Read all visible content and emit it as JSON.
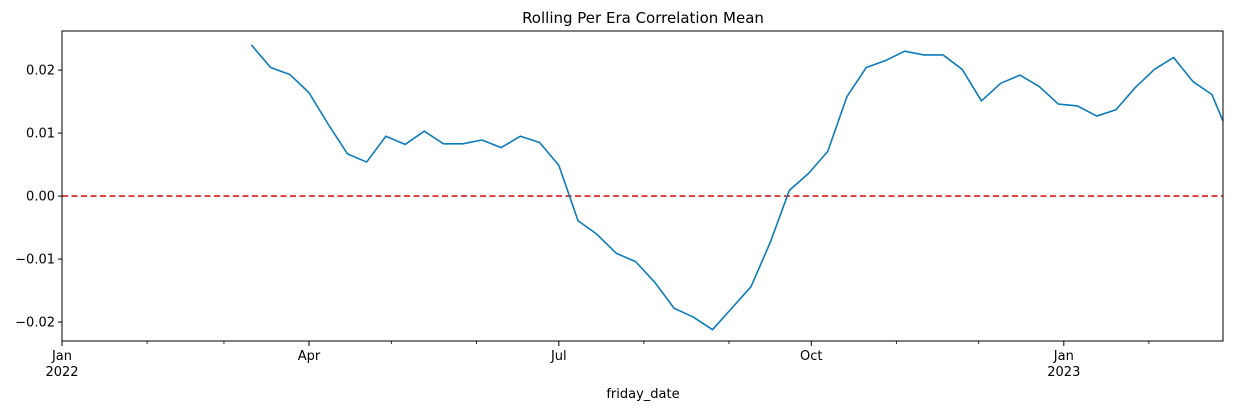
{
  "chart_data": {
    "type": "line",
    "title": "Rolling Per Era Correlation Mean",
    "xlabel": "friday_date",
    "ylabel": "",
    "x_range": [
      "2022-01-01",
      "2023-02-28"
    ],
    "ylim": [
      -0.023,
      0.0262
    ],
    "y_ticks": [
      {
        "value": -0.02,
        "label": "−0.02"
      },
      {
        "value": -0.01,
        "label": "−0.01"
      },
      {
        "value": 0.0,
        "label": "0.00"
      },
      {
        "value": 0.01,
        "label": "0.01"
      },
      {
        "value": 0.02,
        "label": "0.02"
      }
    ],
    "x_major_ticks": [
      {
        "date": "2022-01-01",
        "label": "Jan",
        "sublabel": "2022"
      },
      {
        "date": "2022-04-01",
        "label": "Apr",
        "sublabel": ""
      },
      {
        "date": "2022-07-01",
        "label": "Jul",
        "sublabel": ""
      },
      {
        "date": "2022-10-01",
        "label": "Oct",
        "sublabel": ""
      },
      {
        "date": "2023-01-01",
        "label": "Jan",
        "sublabel": "2023"
      }
    ],
    "x_minor_ticks": [
      "2022-02-01",
      "2022-03-01",
      "2022-05-01",
      "2022-06-01",
      "2022-08-01",
      "2022-09-01",
      "2022-11-01",
      "2022-12-01",
      "2023-02-01"
    ],
    "grid": false,
    "reference_line": {
      "y": 0.0,
      "style": "dashed",
      "color": "#e41a1c"
    },
    "series": [
      {
        "color": "#0c7bba",
        "points": [
          [
            "2022-03-11",
            0.024
          ],
          [
            "2022-03-18",
            0.0204
          ],
          [
            "2022-03-25",
            0.0193
          ],
          [
            "2022-04-01",
            0.0164
          ],
          [
            "2022-04-08",
            0.0114
          ],
          [
            "2022-04-15",
            0.0067
          ],
          [
            "2022-04-22",
            0.0054
          ],
          [
            "2022-04-29",
            0.0095
          ],
          [
            "2022-05-06",
            0.0082
          ],
          [
            "2022-05-13",
            0.0103
          ],
          [
            "2022-05-20",
            0.0083
          ],
          [
            "2022-05-27",
            0.0083
          ],
          [
            "2022-06-03",
            0.0089
          ],
          [
            "2022-06-10",
            0.0077
          ],
          [
            "2022-06-17",
            0.0095
          ],
          [
            "2022-06-24",
            0.0085
          ],
          [
            "2022-07-01",
            0.0049
          ],
          [
            "2022-07-08",
            -0.0039
          ],
          [
            "2022-07-15",
            -0.0061
          ],
          [
            "2022-07-22",
            -0.0091
          ],
          [
            "2022-07-29",
            -0.0104
          ],
          [
            "2022-08-05",
            -0.0137
          ],
          [
            "2022-08-12",
            -0.0178
          ],
          [
            "2022-08-19",
            -0.0192
          ],
          [
            "2022-08-26",
            -0.0212
          ],
          [
            "2022-09-02",
            -0.0178
          ],
          [
            "2022-09-09",
            -0.0144
          ],
          [
            "2022-09-16",
            -0.0074
          ],
          [
            "2022-09-23",
            0.0009
          ],
          [
            "2022-09-30",
            0.0036
          ],
          [
            "2022-10-07",
            0.0071
          ],
          [
            "2022-10-14",
            0.0158
          ],
          [
            "2022-10-21",
            0.0204
          ],
          [
            "2022-10-28",
            0.0215
          ],
          [
            "2022-11-04",
            0.023
          ],
          [
            "2022-11-11",
            0.0224
          ],
          [
            "2022-11-18",
            0.0224
          ],
          [
            "2022-11-25",
            0.0201
          ],
          [
            "2022-12-02",
            0.0151
          ],
          [
            "2022-12-09",
            0.0179
          ],
          [
            "2022-12-16",
            0.0192
          ],
          [
            "2022-12-23",
            0.0174
          ],
          [
            "2022-12-30",
            0.0146
          ],
          [
            "2023-01-06",
            0.0143
          ],
          [
            "2023-01-13",
            0.0127
          ],
          [
            "2023-01-20",
            0.0137
          ],
          [
            "2023-01-27",
            0.0172
          ],
          [
            "2023-02-03",
            0.0201
          ],
          [
            "2023-02-10",
            0.022
          ],
          [
            "2023-02-17",
            0.0182
          ],
          [
            "2023-02-24",
            0.0161
          ],
          [
            "2023-02-28",
            0.0119
          ]
        ]
      }
    ]
  }
}
